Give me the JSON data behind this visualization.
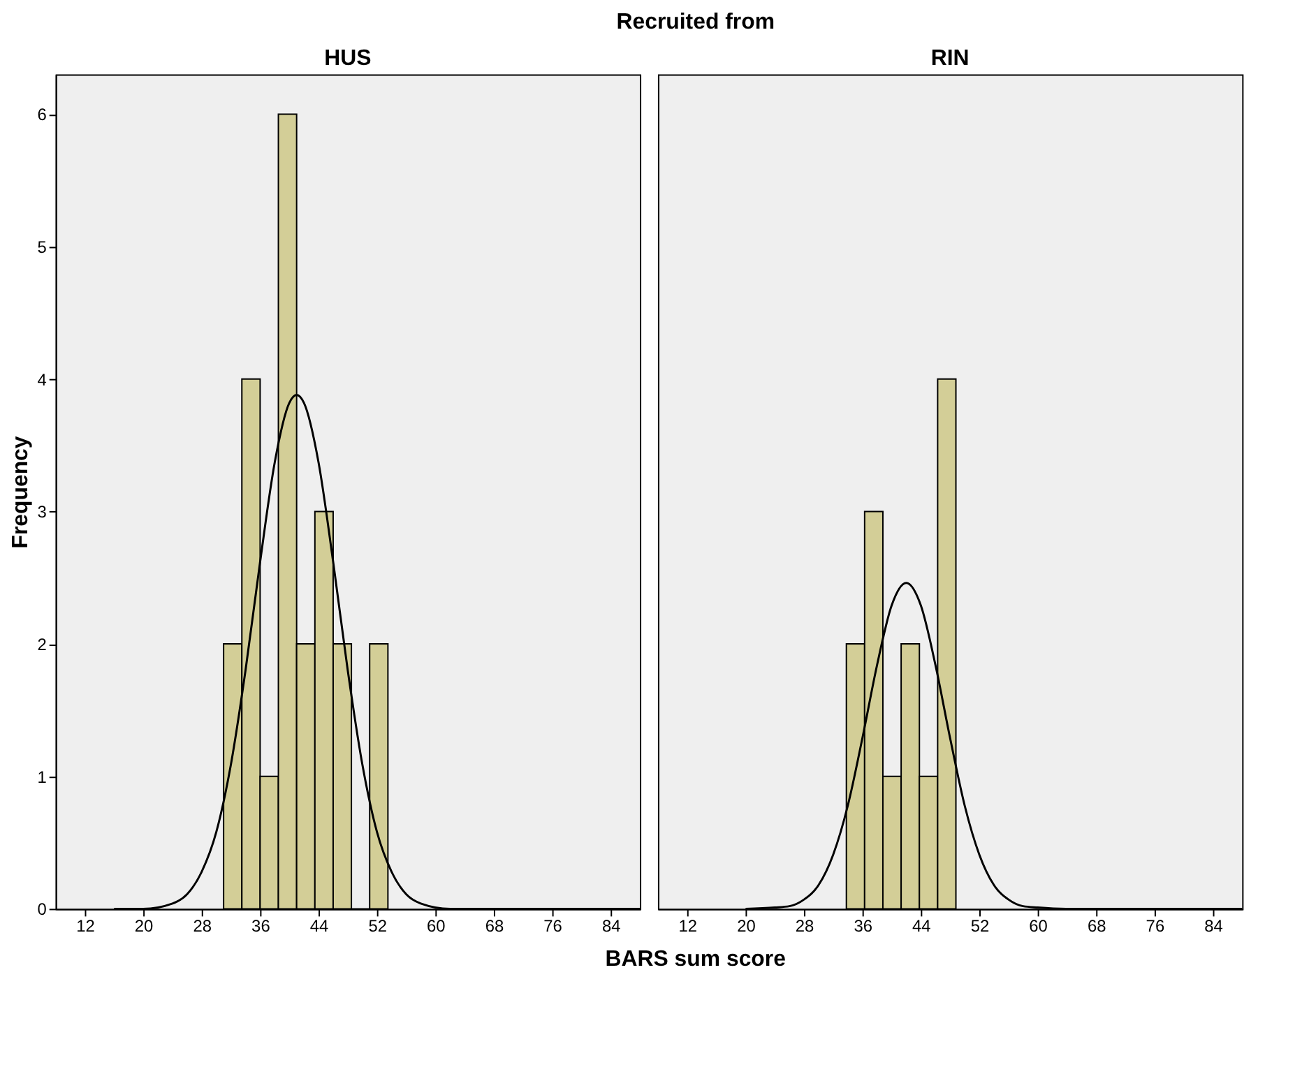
{
  "chart_data": [
    {
      "type": "histogram",
      "title": "HUS",
      "annotations": [
        "Recruited from"
      ],
      "xlabel": "BARS sum score",
      "ylabel": "Frequency",
      "xlim": [
        8,
        88
      ],
      "ylim": [
        0,
        6.3
      ],
      "xticks": [
        12,
        20,
        28,
        36,
        44,
        52,
        60,
        68,
        76,
        84
      ],
      "yticks": [
        0,
        1,
        2,
        3,
        4,
        5,
        6
      ],
      "grid": false,
      "series": [
        {
          "color": "#d3ce97",
          "bins": [
            31,
            33.5,
            36,
            38.5,
            41,
            43.5,
            46,
            48.5,
            51,
            53.5
          ],
          "values": [
            2,
            4,
            1,
            6,
            2,
            3,
            2,
            0,
            2
          ]
        },
        {
          "type": "line",
          "color": "#000000",
          "x": [
            16,
            20,
            24,
            26,
            28,
            30,
            32,
            34,
            36,
            38,
            40,
            41,
            42,
            44,
            46,
            48,
            50,
            52,
            54,
            56,
            58,
            62,
            66,
            88
          ],
          "values": [
            0,
            0,
            0.04,
            0.11,
            0.28,
            0.58,
            1.09,
            1.8,
            2.62,
            3.37,
            3.82,
            3.88,
            3.82,
            3.37,
            2.62,
            1.8,
            1.09,
            0.58,
            0.28,
            0.11,
            0.04,
            0,
            0,
            0
          ]
        }
      ]
    },
    {
      "type": "histogram",
      "title": "RIN",
      "xlim": [
        8,
        88
      ],
      "ylim": [
        0,
        6.3
      ],
      "xticks": [
        12,
        20,
        28,
        36,
        44,
        52,
        60,
        68,
        76,
        84
      ],
      "yticks": [
        0,
        1,
        2,
        3,
        4,
        5,
        6
      ],
      "tick_labels": "x",
      "grid": false,
      "series": [
        {
          "color": "#d3ce97",
          "bins": [
            33.8,
            36.3,
            38.8,
            41.3,
            43.8,
            46.3,
            48.8
          ],
          "values": [
            2,
            3,
            1,
            2,
            1,
            4
          ]
        },
        {
          "type": "line",
          "color": "#000000",
          "x": [
            20,
            24,
            26,
            28,
            30,
            32,
            34,
            36,
            38,
            40,
            42,
            44,
            46,
            48,
            50,
            52,
            54,
            56,
            58,
            60,
            64,
            88
          ],
          "values": [
            0,
            0.01,
            0.02,
            0.07,
            0.18,
            0.41,
            0.78,
            1.29,
            1.84,
            2.29,
            2.46,
            2.29,
            1.84,
            1.29,
            0.78,
            0.41,
            0.18,
            0.07,
            0.02,
            0.01,
            0,
            0
          ]
        }
      ]
    }
  ]
}
